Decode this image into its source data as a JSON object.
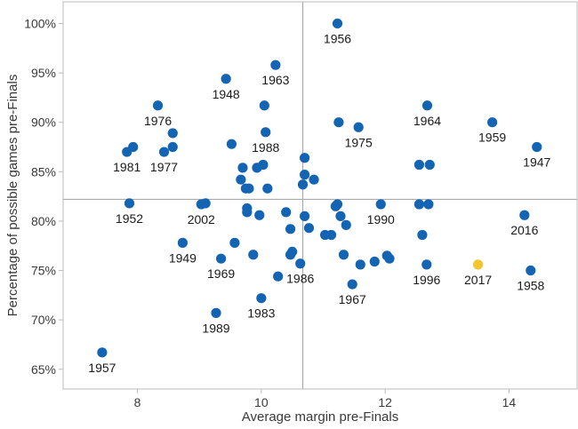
{
  "chart_data": {
    "type": "scatter",
    "title": "",
    "xlabel": "Average margin pre-Finals",
    "ylabel": "Percentage of possible games pre-Finals",
    "xlim": [
      6.8,
      15.1
    ],
    "ylim": [
      63,
      102.2
    ],
    "x_ticks": [
      8,
      10,
      12,
      14
    ],
    "x_tick_labels": [
      "8",
      "10",
      "12",
      "14"
    ],
    "y_ticks": [
      65,
      70,
      75,
      80,
      85,
      90,
      95,
      100
    ],
    "y_tick_labels": [
      "65%",
      "70%",
      "75%",
      "80%",
      "85%",
      "90%",
      "95%",
      "100%"
    ],
    "grid": false,
    "reference_lines": {
      "x": 10.67,
      "y": 82.2
    },
    "colors": {
      "default": "#1464b4",
      "highlight": "#f5c531",
      "axis": "#bbbbbb",
      "reference": "#aaaaaa"
    },
    "points": [
      {
        "x": 7.43,
        "y": 66.7,
        "label": "1957"
      },
      {
        "x": 7.83,
        "y": 87.0,
        "label": "1981"
      },
      {
        "x": 7.93,
        "y": 87.5,
        "label": ""
      },
      {
        "x": 7.87,
        "y": 81.8,
        "label": "1952"
      },
      {
        "x": 8.33,
        "y": 91.7,
        "label": "1976"
      },
      {
        "x": 8.43,
        "y": 87.0,
        "label": "1977"
      },
      {
        "x": 8.57,
        "y": 88.9,
        "label": ""
      },
      {
        "x": 8.57,
        "y": 87.5,
        "label": ""
      },
      {
        "x": 8.73,
        "y": 77.8,
        "label": "1949"
      },
      {
        "x": 9.03,
        "y": 81.7,
        "label": "2002"
      },
      {
        "x": 9.1,
        "y": 81.8,
        "label": ""
      },
      {
        "x": 9.27,
        "y": 70.7,
        "label": "1989"
      },
      {
        "x": 9.35,
        "y": 76.2,
        "label": "1969"
      },
      {
        "x": 9.43,
        "y": 94.4,
        "label": "1948"
      },
      {
        "x": 9.52,
        "y": 87.8,
        "label": ""
      },
      {
        "x": 9.57,
        "y": 77.8,
        "label": ""
      },
      {
        "x": 9.67,
        "y": 84.2,
        "label": ""
      },
      {
        "x": 9.7,
        "y": 85.4,
        "label": ""
      },
      {
        "x": 9.75,
        "y": 83.3,
        "label": ""
      },
      {
        "x": 9.8,
        "y": 83.3,
        "label": ""
      },
      {
        "x": 9.77,
        "y": 81.3,
        "label": ""
      },
      {
        "x": 9.77,
        "y": 80.9,
        "label": ""
      },
      {
        "x": 9.87,
        "y": 76.6,
        "label": ""
      },
      {
        "x": 9.93,
        "y": 85.4,
        "label": ""
      },
      {
        "x": 9.97,
        "y": 80.6,
        "label": ""
      },
      {
        "x": 10.0,
        "y": 72.2,
        "label": "1983"
      },
      {
        "x": 10.03,
        "y": 85.7,
        "label": ""
      },
      {
        "x": 10.05,
        "y": 91.7,
        "label": ""
      },
      {
        "x": 10.07,
        "y": 89.0,
        "label": "1988"
      },
      {
        "x": 10.1,
        "y": 83.3,
        "label": ""
      },
      {
        "x": 10.23,
        "y": 95.8,
        "label": "1963"
      },
      {
        "x": 10.27,
        "y": 74.4,
        "label": ""
      },
      {
        "x": 10.4,
        "y": 80.9,
        "label": ""
      },
      {
        "x": 10.47,
        "y": 79.2,
        "label": ""
      },
      {
        "x": 10.47,
        "y": 76.6,
        "label": ""
      },
      {
        "x": 10.5,
        "y": 76.9,
        "label": ""
      },
      {
        "x": 10.63,
        "y": 75.7,
        "label": "1986"
      },
      {
        "x": 10.67,
        "y": 83.7,
        "label": ""
      },
      {
        "x": 10.7,
        "y": 86.4,
        "label": ""
      },
      {
        "x": 10.7,
        "y": 84.7,
        "label": ""
      },
      {
        "x": 10.7,
        "y": 80.5,
        "label": ""
      },
      {
        "x": 10.77,
        "y": 79.3,
        "label": ""
      },
      {
        "x": 10.85,
        "y": 84.2,
        "label": ""
      },
      {
        "x": 11.03,
        "y": 78.6,
        "label": ""
      },
      {
        "x": 11.13,
        "y": 78.6,
        "label": ""
      },
      {
        "x": 11.2,
        "y": 81.5,
        "label": ""
      },
      {
        "x": 11.23,
        "y": 81.7,
        "label": ""
      },
      {
        "x": 11.23,
        "y": 100.0,
        "label": "1956"
      },
      {
        "x": 11.25,
        "y": 90.0,
        "label": ""
      },
      {
        "x": 11.28,
        "y": 80.5,
        "label": ""
      },
      {
        "x": 11.33,
        "y": 76.6,
        "label": ""
      },
      {
        "x": 11.37,
        "y": 79.6,
        "label": ""
      },
      {
        "x": 11.47,
        "y": 73.6,
        "label": "1967"
      },
      {
        "x": 11.57,
        "y": 89.5,
        "label": "1975"
      },
      {
        "x": 11.6,
        "y": 75.6,
        "label": ""
      },
      {
        "x": 11.83,
        "y": 75.9,
        "label": ""
      },
      {
        "x": 11.93,
        "y": 81.7,
        "label": "1990"
      },
      {
        "x": 12.03,
        "y": 76.5,
        "label": ""
      },
      {
        "x": 12.07,
        "y": 76.2,
        "label": ""
      },
      {
        "x": 12.55,
        "y": 85.7,
        "label": ""
      },
      {
        "x": 12.55,
        "y": 81.7,
        "label": ""
      },
      {
        "x": 12.6,
        "y": 78.6,
        "label": ""
      },
      {
        "x": 12.67,
        "y": 75.6,
        "label": "1996"
      },
      {
        "x": 12.68,
        "y": 91.7,
        "label": "1964"
      },
      {
        "x": 12.7,
        "y": 81.7,
        "label": ""
      },
      {
        "x": 12.72,
        "y": 85.7,
        "label": ""
      },
      {
        "x": 13.5,
        "y": 75.6,
        "label": "2017",
        "highlight": true
      },
      {
        "x": 13.73,
        "y": 90.0,
        "label": "1959"
      },
      {
        "x": 14.25,
        "y": 80.6,
        "label": "2016"
      },
      {
        "x": 14.35,
        "y": 75.0,
        "label": "1958"
      },
      {
        "x": 14.45,
        "y": 87.5,
        "label": "1947"
      }
    ]
  }
}
